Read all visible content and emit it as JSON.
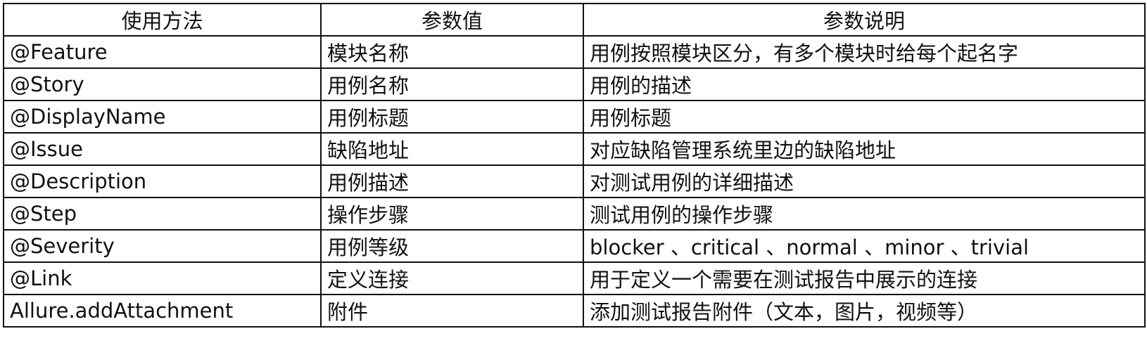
{
  "headers": [
    "使用方法",
    "参数值",
    "参数说明"
  ],
  "rows": [
    [
      "@Feature",
      "模块名称",
      "用例按照模块区分，有多个模块时给每个起名字"
    ],
    [
      "@Story",
      "用例名称",
      "用例的描述"
    ],
    [
      "@DisplayName",
      "用例标题",
      "用例标题"
    ],
    [
      "@Issue",
      "缺陷地址",
      "对应缺陷管理系统里边的缺陷地址"
    ],
    [
      "@Description",
      "用例描述",
      "对测试用例的详细描述"
    ],
    [
      "@Step",
      "操作步骤",
      "测试用例的操作步骤"
    ],
    [
      "@Severity",
      "用例等级",
      "blocker 、critical 、normal 、minor 、trivial"
    ],
    [
      "@Link",
      "定义连接",
      "用于定义一个需要在测试报告中展示的连接"
    ],
    [
      "Allure.addAttachment",
      "附件",
      "添加测试报告附件（文本，图片，视频等）"
    ]
  ]
}
